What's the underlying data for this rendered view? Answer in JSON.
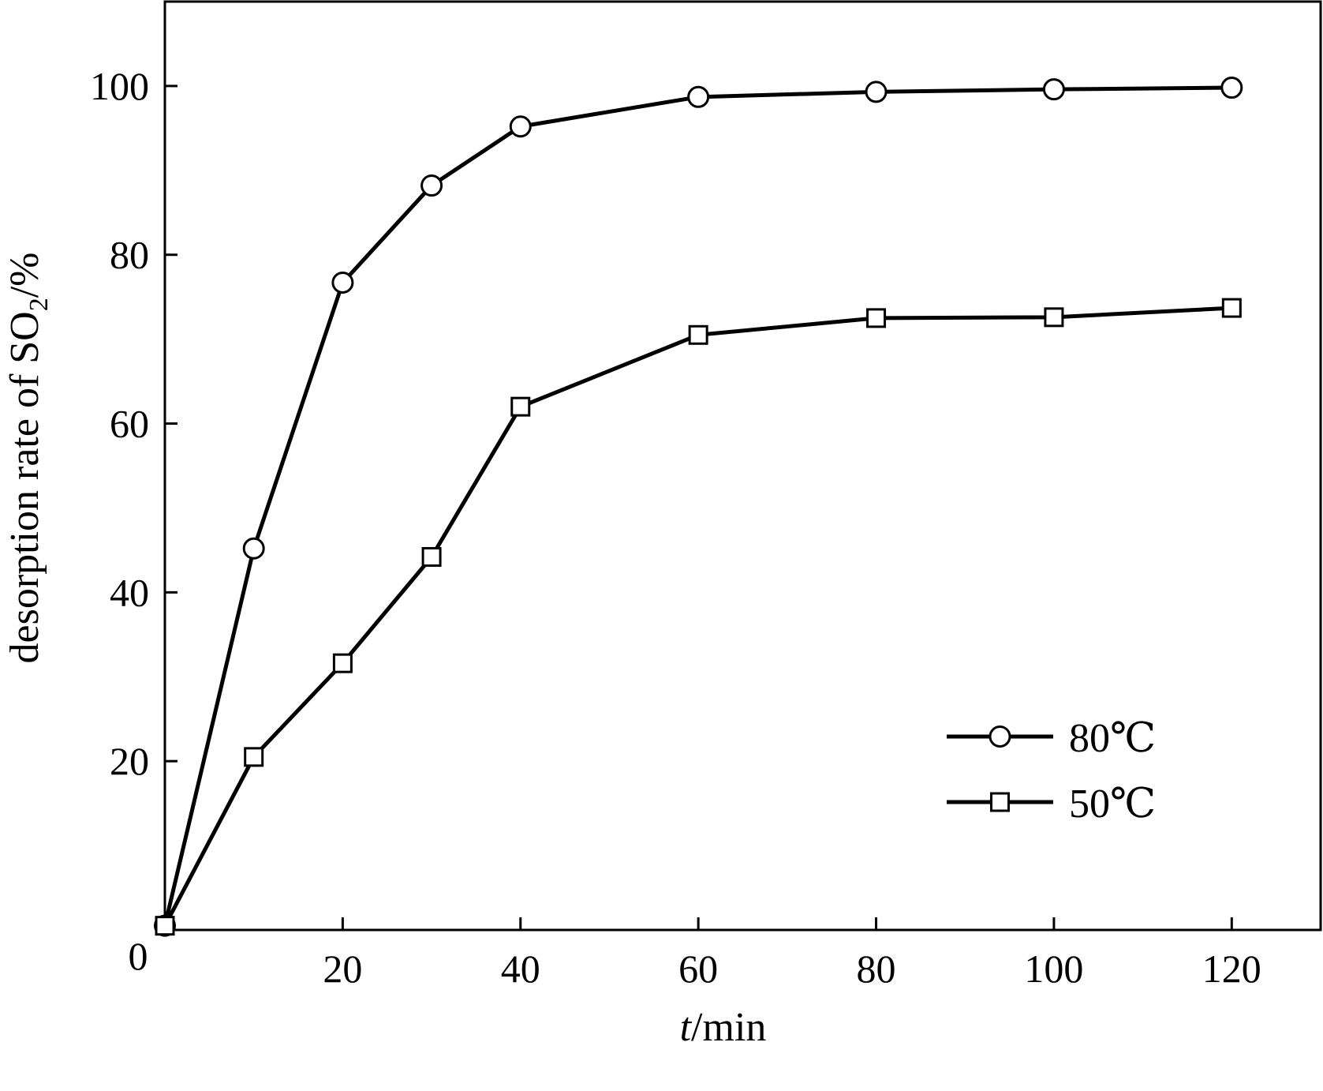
{
  "chart_data": {
    "type": "line",
    "xlabel": {
      "italic": "t",
      "rest": "/min"
    },
    "ylabel": {
      "pre": "desorption rate of SO",
      "sub": "2",
      "post": "/%"
    },
    "xlim": [
      0,
      130
    ],
    "ylim": [
      0,
      110
    ],
    "x_ticks": [
      20,
      40,
      60,
      80,
      100,
      120
    ],
    "y_ticks": [
      20,
      40,
      60,
      80,
      100
    ],
    "origin_label": "0",
    "grid": false,
    "legend_position": "bottom-right",
    "series": [
      {
        "name": "80℃",
        "marker": "circle",
        "x": [
          0,
          10,
          20,
          30,
          40,
          60,
          80,
          100,
          120
        ],
        "y": [
          0.5,
          45.2,
          76.7,
          88.2,
          95.2,
          98.7,
          99.3,
          99.6,
          99.8
        ]
      },
      {
        "name": "50℃",
        "marker": "square",
        "x": [
          0,
          10,
          20,
          30,
          40,
          60,
          80,
          100,
          120
        ],
        "y": [
          0.5,
          20.5,
          31.6,
          44.2,
          62.0,
          70.5,
          72.5,
          72.6,
          73.7
        ]
      }
    ]
  }
}
